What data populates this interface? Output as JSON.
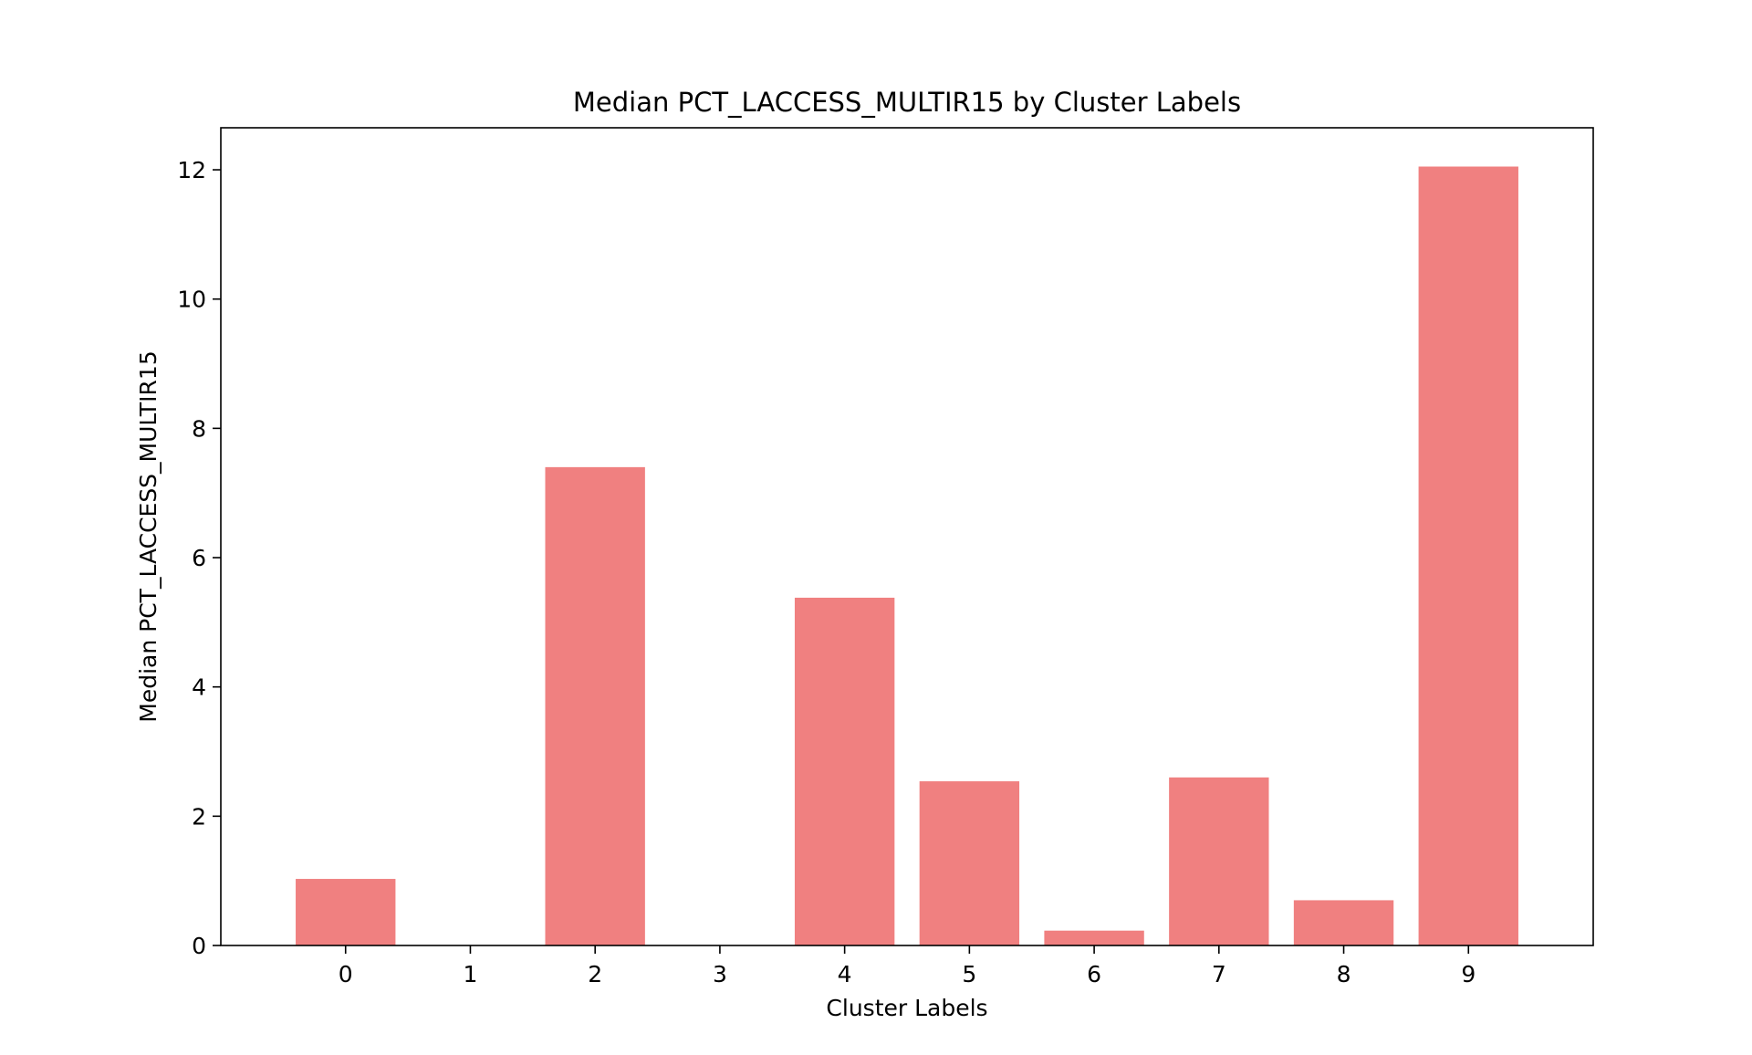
{
  "chart_data": {
    "type": "bar",
    "title": "Median PCT_LACCESS_MULTIR15 by Cluster Labels",
    "xlabel": "Cluster Labels",
    "ylabel": "Median PCT_LACCESS_MULTIR15",
    "categories": [
      "0",
      "1",
      "2",
      "3",
      "4",
      "5",
      "6",
      "7",
      "8",
      "9"
    ],
    "values": [
      1.03,
      0.0,
      7.4,
      0.0,
      5.38,
      2.54,
      0.23,
      2.6,
      0.7,
      12.05
    ],
    "ylim": [
      0,
      12.65
    ],
    "yticks": [
      0,
      2,
      4,
      6,
      8,
      10,
      12
    ],
    "grid": false,
    "legend": "none",
    "bar_color": "#f08080",
    "axis_color": "#000000"
  }
}
